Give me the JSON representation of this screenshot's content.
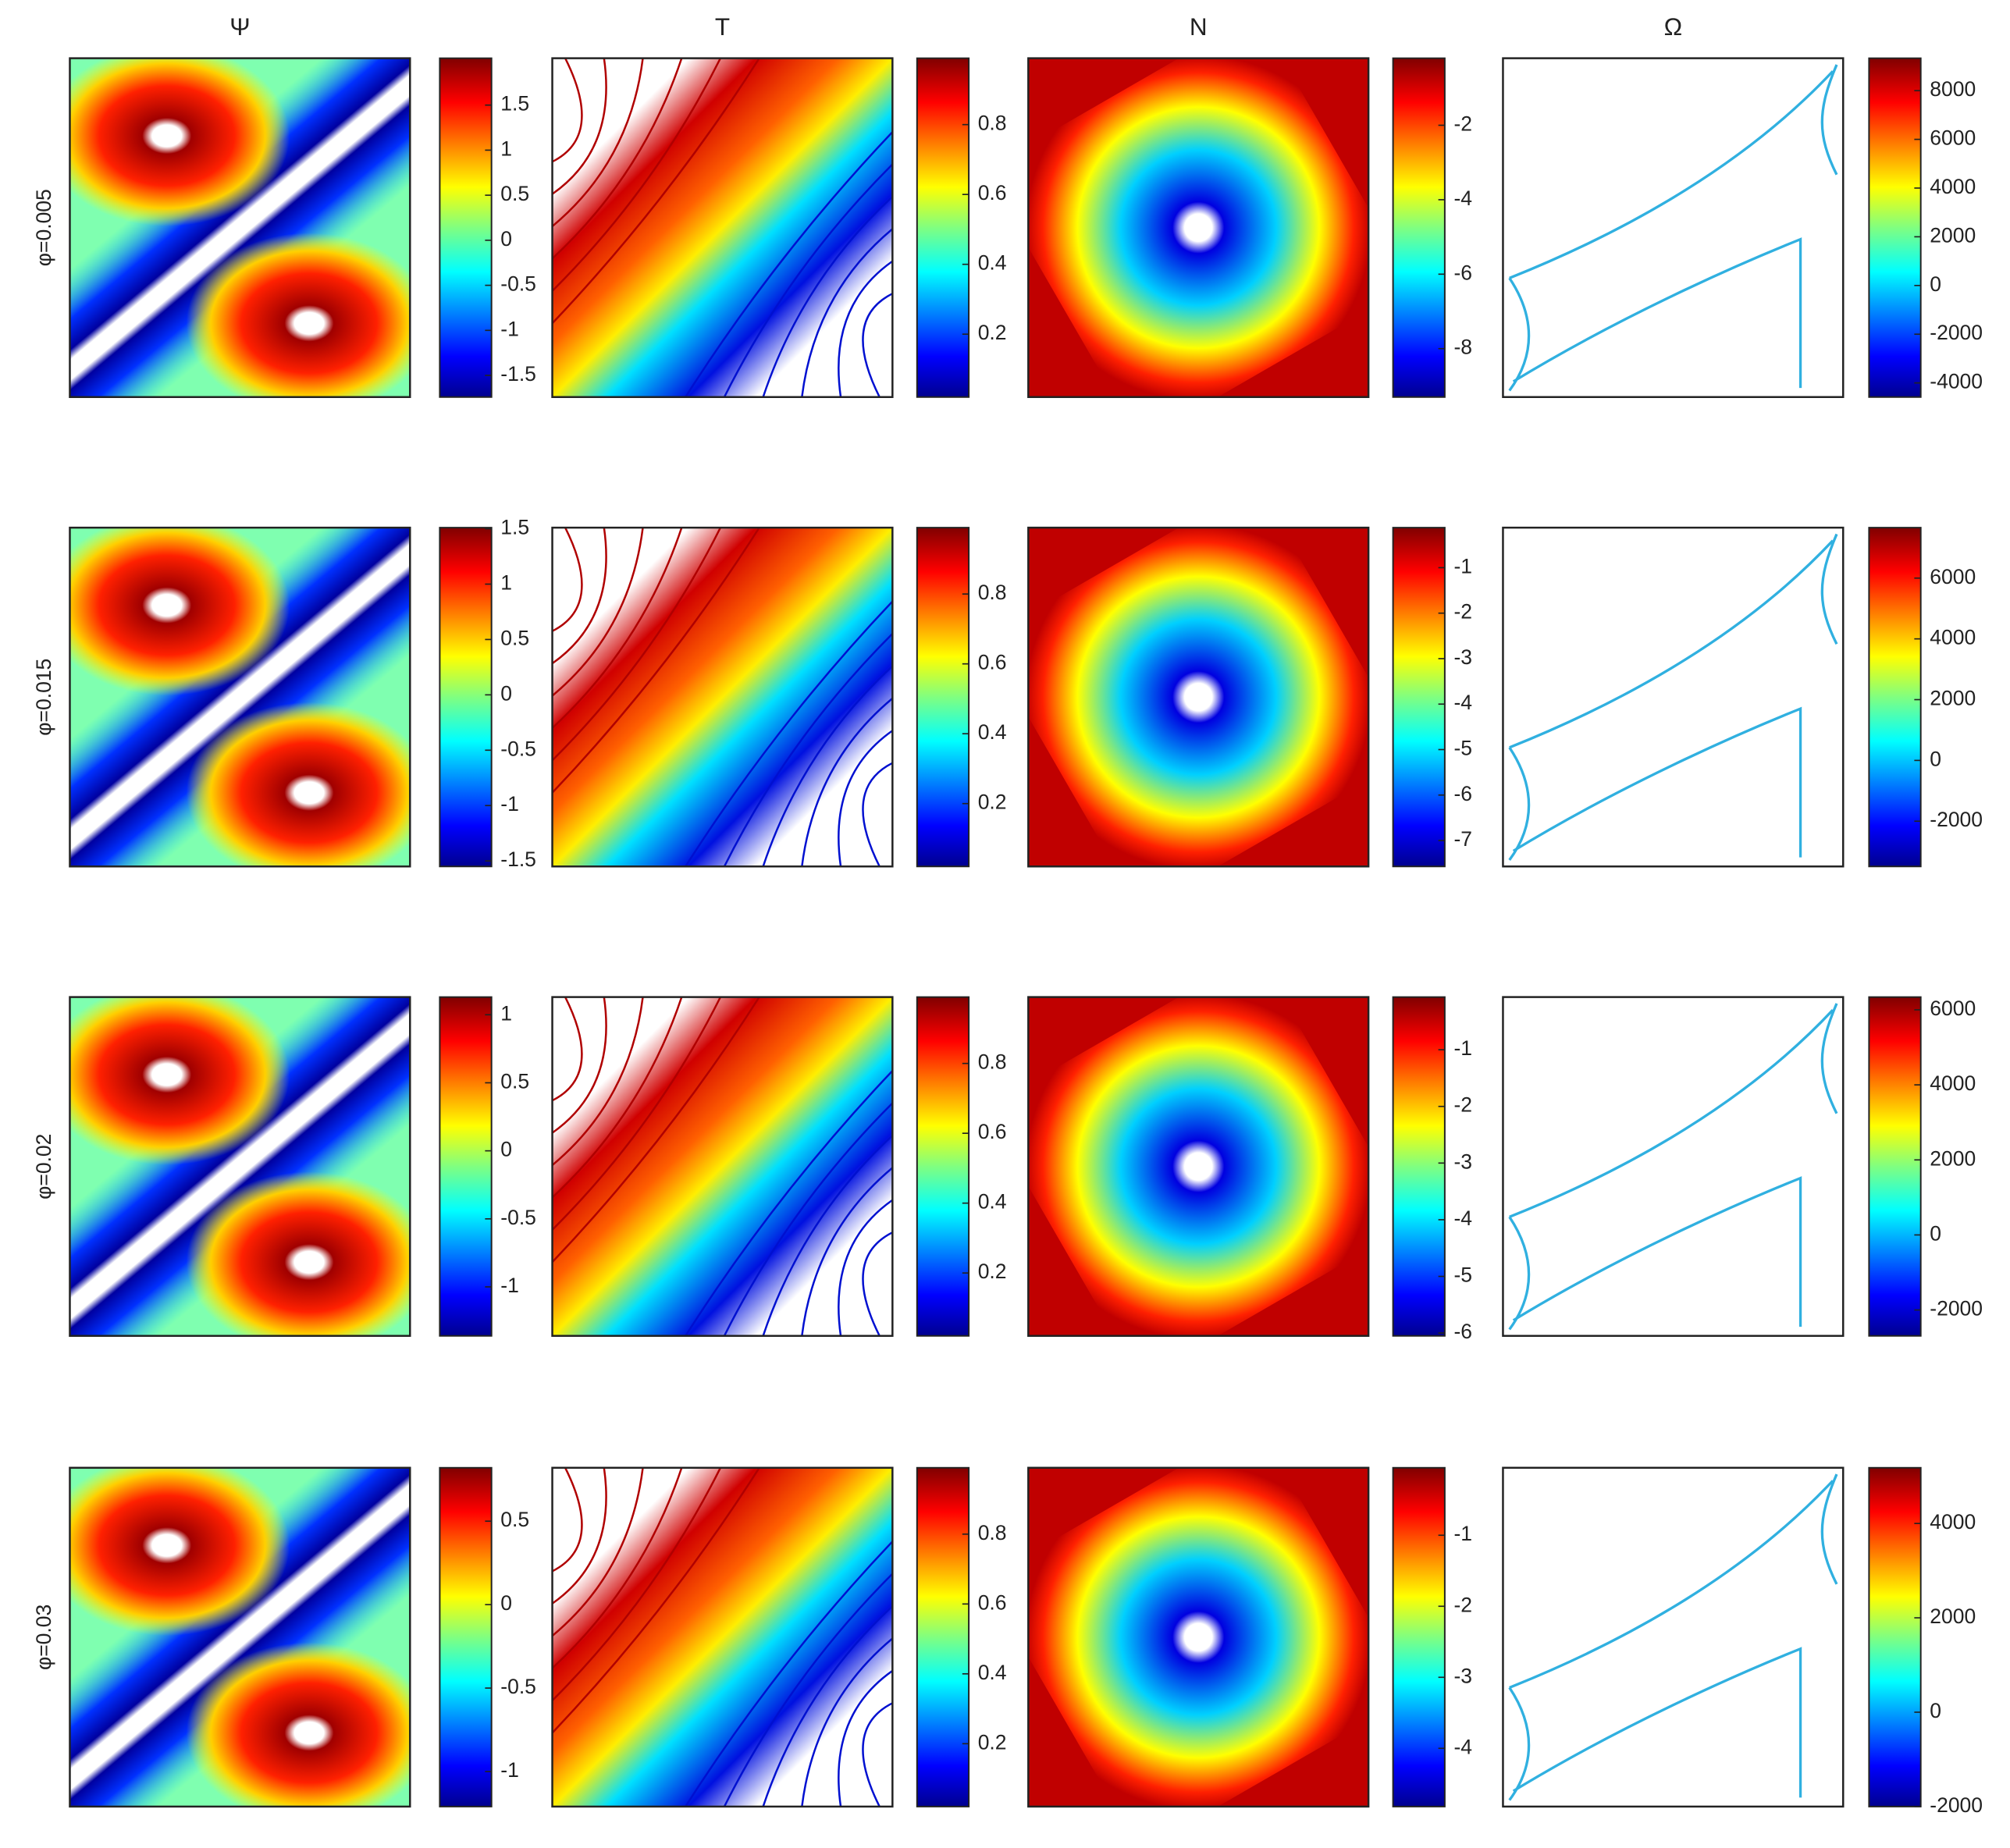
{
  "columns": [
    "Ψ",
    "T",
    "N",
    "Ω"
  ],
  "rows": [
    {
      "label": "φ=0.005",
      "colorbars": [
        {
          "ylim": [
            -1.74,
            2.02
          ],
          "yticks": [
            1.5,
            1,
            0.5,
            0,
            -0.5,
            -1,
            -1.5
          ]
        },
        {
          "ylim": [
            0.02,
            0.99
          ],
          "yticks": [
            0.8,
            0.6,
            0.4,
            0.2
          ]
        },
        {
          "ylim": [
            -9.3,
            -0.2
          ],
          "yticks": [
            -2,
            -4,
            -6,
            -8
          ]
        },
        {
          "ylim": [
            -4580,
            9330
          ],
          "yticks": [
            8000,
            6000,
            4000,
            2000,
            0,
            -2000,
            -4000
          ]
        }
      ]
    },
    {
      "label": "φ=0.015",
      "colorbars": [
        {
          "ylim": [
            -1.55,
            1.51
          ],
          "yticks": [
            1.5,
            1,
            0.5,
            0,
            -0.5,
            -1,
            -1.5
          ]
        },
        {
          "ylim": [
            0.02,
            0.99
          ],
          "yticks": [
            0.8,
            0.6,
            0.4,
            0.2
          ]
        },
        {
          "ylim": [
            -7.57,
            -0.12
          ],
          "yticks": [
            -1,
            -2,
            -3,
            -4,
            -5,
            -6,
            -7
          ]
        },
        {
          "ylim": [
            -3490,
            7660
          ],
          "yticks": [
            6000,
            4000,
            2000,
            0,
            -2000
          ]
        }
      ]
    },
    {
      "label": "φ=0.02",
      "colorbars": [
        {
          "ylim": [
            -1.36,
            1.13
          ],
          "yticks": [
            1,
            0.5,
            0,
            -0.5,
            -1
          ]
        },
        {
          "ylim": [
            0.02,
            0.99
          ],
          "yticks": [
            0.8,
            0.6,
            0.4,
            0.2
          ]
        },
        {
          "ylim": [
            -6.05,
            -0.07
          ],
          "yticks": [
            -1,
            -2,
            -3,
            -4,
            -5,
            -6
          ]
        },
        {
          "ylim": [
            -2690,
            6340
          ],
          "yticks": [
            6000,
            4000,
            2000,
            0,
            -2000
          ]
        }
      ]
    },
    {
      "label": "φ=0.03",
      "colorbars": [
        {
          "ylim": [
            -1.21,
            0.82
          ],
          "yticks": [
            0.5,
            0,
            -0.5,
            -1
          ]
        },
        {
          "ylim": [
            0.02,
            0.99
          ],
          "yticks": [
            0.8,
            0.6,
            0.4,
            0.2
          ]
        },
        {
          "ylim": [
            -4.82,
            -0.05
          ],
          "yticks": [
            -1,
            -2,
            -3,
            -4
          ]
        },
        {
          "ylim": [
            -2000,
            5180
          ],
          "yticks": [
            4000,
            2000,
            0,
            -2000
          ]
        }
      ]
    }
  ]
}
